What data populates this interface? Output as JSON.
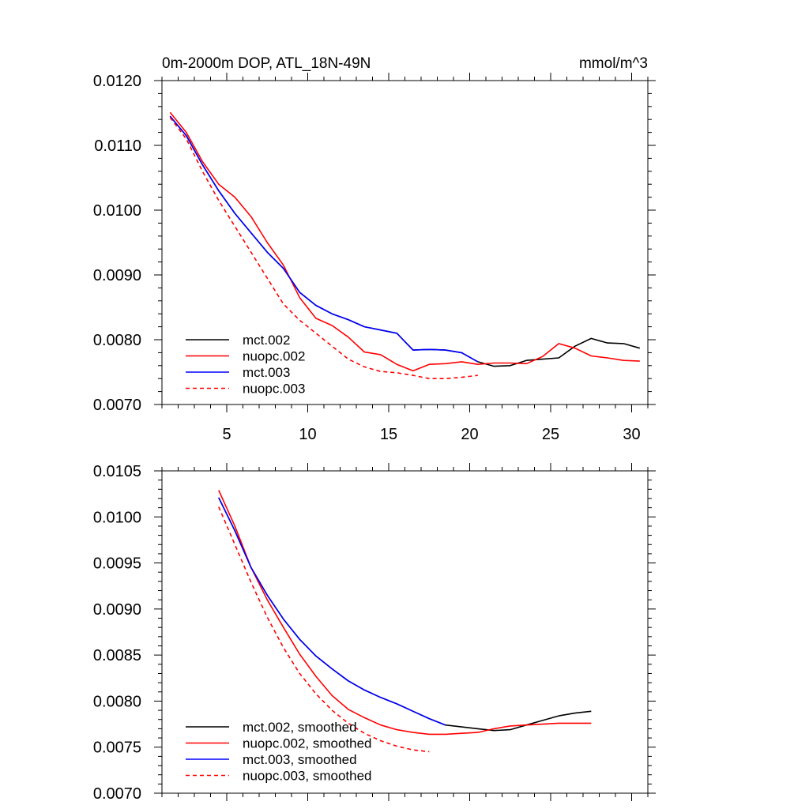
{
  "chart_data": [
    {
      "type": "line",
      "title": "0m-2000m DOP, ATL_18N-49N",
      "units": "mmol/m^3",
      "xlabel": "",
      "ylabel": "",
      "xlim": [
        1,
        31
      ],
      "ylim": [
        0.007,
        0.012
      ],
      "xticks": [
        5,
        10,
        15,
        20,
        25,
        30
      ],
      "xtick_labels": [
        "5",
        "10",
        "15",
        "20",
        "25",
        "30"
      ],
      "yticks": [
        0.007,
        0.008,
        0.009,
        0.01,
        0.011,
        0.012
      ],
      "ytick_labels": [
        "0.0070",
        "0.0080",
        "0.0090",
        "0.0100",
        "0.0110",
        "0.0120"
      ],
      "legend_position": "bottom-left",
      "series": [
        {
          "name": "mct.002",
          "color": "#000000",
          "dash": "solid",
          "x": [
            1.5,
            2.5,
            3.5,
            4.5,
            5.5,
            6.5,
            7.5,
            8.5,
            9.5,
            10.5,
            11.5,
            12.5,
            13.5,
            14.5,
            15.5,
            16.5,
            17.5,
            18.5,
            19.5,
            20.5,
            21.5,
            22.5,
            23.5,
            24.5,
            25.5,
            26.5,
            27.5,
            28.5,
            29.5,
            30.5
          ],
          "y": [
            0.01145,
            0.01115,
            0.0107,
            0.0103,
            0.00995,
            0.00965,
            0.00935,
            0.0091,
            0.00873,
            0.00853,
            0.0084,
            0.00831,
            0.0082,
            0.00815,
            0.0081,
            0.00784,
            0.00785,
            0.00784,
            0.0078,
            0.00766,
            0.00759,
            0.0076,
            0.00768,
            0.0077,
            0.00772,
            0.0079,
            0.00802,
            0.00795,
            0.00794,
            0.00787
          ]
        },
        {
          "name": "nuopc.002",
          "color": "#ff0000",
          "dash": "solid",
          "x": [
            1.5,
            2.5,
            3.5,
            4.5,
            5.5,
            6.5,
            7.5,
            8.5,
            9.5,
            10.5,
            11.5,
            12.5,
            13.5,
            14.5,
            15.5,
            16.5,
            17.5,
            18.5,
            19.5,
            20.5,
            21.5,
            22.5,
            23.5,
            24.5,
            25.5,
            26.5,
            27.5,
            28.5,
            29.5,
            30.5
          ],
          "y": [
            0.01151,
            0.0112,
            0.01075,
            0.0104,
            0.0102,
            0.0099,
            0.0095,
            0.00915,
            0.00865,
            0.00833,
            0.00822,
            0.00804,
            0.00781,
            0.00777,
            0.00762,
            0.00752,
            0.00762,
            0.00763,
            0.00766,
            0.00762,
            0.00764,
            0.00764,
            0.00763,
            0.00774,
            0.00794,
            0.00787,
            0.00775,
            0.00772,
            0.00768,
            0.00767
          ]
        },
        {
          "name": "mct.003",
          "color": "#0000ff",
          "dash": "solid",
          "x": [
            1.5,
            2.5,
            3.5,
            4.5,
            5.5,
            6.5,
            7.5,
            8.5,
            9.5,
            10.5,
            11.5,
            12.5,
            13.5,
            14.5,
            15.5,
            16.5,
            17.5,
            18.5,
            19.5,
            20.5
          ],
          "y": [
            0.01145,
            0.01115,
            0.0107,
            0.0103,
            0.00995,
            0.00965,
            0.00935,
            0.0091,
            0.00873,
            0.00853,
            0.0084,
            0.00831,
            0.0082,
            0.00815,
            0.0081,
            0.00784,
            0.00785,
            0.00784,
            0.0078,
            0.00766
          ]
        },
        {
          "name": "nuopc.003",
          "color": "#ff0000",
          "dash": "dashed",
          "x": [
            1.5,
            2.5,
            3.5,
            4.5,
            5.5,
            6.5,
            7.5,
            8.5,
            9.5,
            10.5,
            11.5,
            12.5,
            13.5,
            14.5,
            15.5,
            16.5,
            17.5,
            18.5,
            19.5,
            20.5
          ],
          "y": [
            0.01143,
            0.0111,
            0.0106,
            0.01015,
            0.00975,
            0.00935,
            0.00895,
            0.00855,
            0.0083,
            0.0081,
            0.0079,
            0.0077,
            0.00758,
            0.00751,
            0.00749,
            0.00745,
            0.0074,
            0.0074,
            0.00742,
            0.00745
          ]
        }
      ]
    },
    {
      "type": "line",
      "title": "",
      "xlabel": "",
      "ylabel": "",
      "xlim": [
        1,
        31
      ],
      "ylim": [
        0.007,
        0.0105
      ],
      "xticks": [
        5,
        10,
        15,
        20,
        25,
        30
      ],
      "xtick_labels": [],
      "yticks": [
        0.007,
        0.0075,
        0.008,
        0.0085,
        0.009,
        0.0095,
        0.01,
        0.0105
      ],
      "ytick_labels": [
        "0.0070",
        "0.0075",
        "0.0080",
        "0.0085",
        "0.0090",
        "0.0095",
        "0.0100",
        "0.0105"
      ],
      "legend_position": "bottom-left",
      "series": [
        {
          "name": "mct.002, smoothed",
          "color": "#000000",
          "dash": "solid",
          "x": [
            4.5,
            5.5,
            6.5,
            7.5,
            8.5,
            9.5,
            10.5,
            11.5,
            12.5,
            13.5,
            14.5,
            15.5,
            16.5,
            17.5,
            18.5,
            19.5,
            20.5,
            21.5,
            22.5,
            23.5,
            24.5,
            25.5,
            26.5,
            27.5
          ],
          "y": [
            0.01021,
            0.00985,
            0.00945,
            0.00915,
            0.00889,
            0.00867,
            0.00849,
            0.00835,
            0.00822,
            0.00812,
            0.00804,
            0.00797,
            0.00789,
            0.00781,
            0.00774,
            0.00772,
            0.0077,
            0.00768,
            0.00769,
            0.00774,
            0.00779,
            0.00784,
            0.00787,
            0.00789
          ]
        },
        {
          "name": "nuopc.002, smoothed",
          "color": "#ff0000",
          "dash": "solid",
          "x": [
            4.5,
            5.5,
            6.5,
            7.5,
            8.5,
            9.5,
            10.5,
            11.5,
            12.5,
            13.5,
            14.5,
            15.5,
            16.5,
            17.5,
            18.5,
            19.5,
            20.5,
            21.5,
            22.5,
            23.5,
            24.5,
            25.5,
            26.5,
            27.5
          ],
          "y": [
            0.01029,
            0.0099,
            0.00945,
            0.0091,
            0.0088,
            0.00851,
            0.00827,
            0.00806,
            0.00791,
            0.00782,
            0.00774,
            0.00769,
            0.00766,
            0.00764,
            0.00764,
            0.00765,
            0.00766,
            0.0077,
            0.00773,
            0.00774,
            0.00775,
            0.00776,
            0.00776,
            0.00776
          ]
        },
        {
          "name": "mct.003, smoothed",
          "color": "#0000ff",
          "dash": "solid",
          "x": [
            4.5,
            5.5,
            6.5,
            7.5,
            8.5,
            9.5,
            10.5,
            11.5,
            12.5,
            13.5,
            14.5,
            15.5,
            16.5,
            17.5,
            18.5
          ],
          "y": [
            0.01021,
            0.00985,
            0.00945,
            0.00915,
            0.00889,
            0.00867,
            0.00849,
            0.00835,
            0.00822,
            0.00812,
            0.00804,
            0.00797,
            0.00789,
            0.00781,
            0.00774
          ]
        },
        {
          "name": "nuopc.003, smoothed",
          "color": "#ff0000",
          "dash": "dashed",
          "x": [
            4.5,
            5.5,
            6.5,
            7.5,
            8.5,
            9.5,
            10.5,
            11.5,
            12.5,
            13.5,
            14.5,
            15.5,
            16.5,
            17.5
          ],
          "y": [
            0.01011,
            0.0097,
            0.00929,
            0.00891,
            0.00858,
            0.0083,
            0.00808,
            0.0079,
            0.00776,
            0.00765,
            0.00757,
            0.00751,
            0.00747,
            0.00745
          ]
        }
      ]
    }
  ]
}
